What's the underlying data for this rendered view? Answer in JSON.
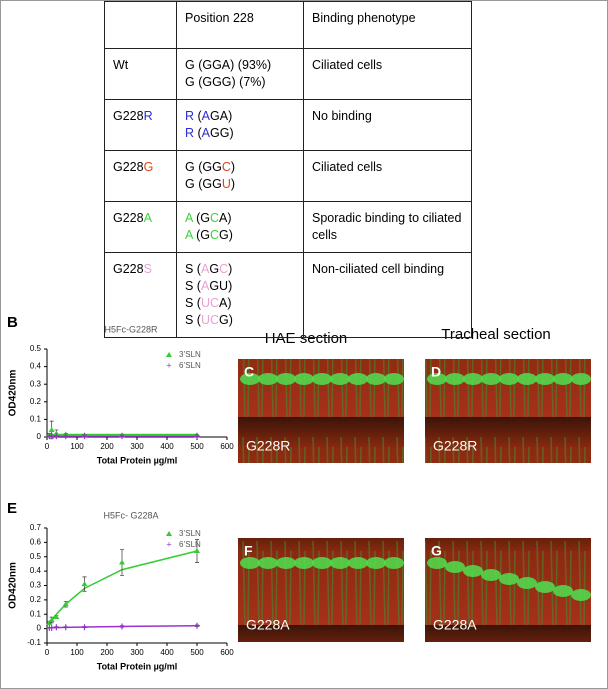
{
  "table": {
    "header": [
      "Position 228",
      "Binding phenotype"
    ],
    "rows": [
      [
        [
          [
            "Wt"
          ]
        ],
        [
          [
            "G (GGA) (93%)"
          ],
          [
            "G (GGG) (7%)"
          ]
        ],
        [
          [
            "Ciliated cells"
          ]
        ]
      ],
      [
        [
          [
            "G228",
            {
              "text": "R",
              "color": "#2b2bd6"
            }
          ]
        ],
        [
          [
            {
              "text": "R",
              "color": "#2b2bd6"
            },
            " (",
            {
              "text": "A",
              "color": "#2b2bd6"
            },
            "GA)"
          ],
          [
            {
              "text": "R",
              "color": "#2b2bd6"
            },
            " (",
            {
              "text": "A",
              "color": "#2b2bd6"
            },
            "GG)"
          ]
        ],
        [
          [
            "No binding"
          ]
        ]
      ],
      [
        [
          [
            "G228",
            {
              "text": "G",
              "color": "#e0441c"
            }
          ]
        ],
        [
          [
            "G (GG",
            {
              "text": "C",
              "color": "#e0441c"
            },
            ")"
          ],
          [
            "G (GG",
            {
              "text": "U",
              "color": "#e0441c"
            },
            ")"
          ]
        ],
        [
          [
            "Ciliated cells"
          ]
        ]
      ],
      [
        [
          [
            "G228",
            {
              "text": "A",
              "color": "#3fcf3f"
            }
          ]
        ],
        [
          [
            {
              "text": "A",
              "color": "#3fcf3f"
            },
            " (G",
            {
              "text": "C",
              "color": "#3fcf3f"
            },
            "A)"
          ],
          [
            {
              "text": "A",
              "color": "#3fcf3f"
            },
            " (G",
            {
              "text": "C",
              "color": "#3fcf3f"
            },
            "G)"
          ]
        ],
        [
          [
            "Sporadic binding to ciliated cells"
          ]
        ]
      ],
      [
        [
          [
            "G228",
            {
              "text": "S",
              "color": "#e8a2d4"
            }
          ]
        ],
        [
          [
            "S (",
            {
              "text": "A",
              "color": "#e8a2d4"
            },
            "G",
            {
              "text": "C",
              "color": "#e8a2d4"
            },
            ")"
          ],
          [
            "S (",
            {
              "text": "A",
              "color": "#e8a2d4"
            },
            "GU)"
          ],
          [
            "S (",
            {
              "text": "UC",
              "color": "#e8a2d4"
            },
            "A)"
          ],
          [
            "S (",
            {
              "text": "UC",
              "color": "#e8a2d4"
            },
            "G)"
          ]
        ],
        [
          [
            "Non-ciliated cell binding"
          ]
        ]
      ]
    ]
  },
  "chart_data": [
    {
      "type": "scatter",
      "panel": "B",
      "title": "H5Fc-G228R",
      "ylabel": "OD420nm",
      "xlabel": "Total Protein µg/ml",
      "xlim": [
        0,
        600
      ],
      "xticks": [
        0,
        100,
        200,
        300,
        400,
        500,
        600
      ],
      "ylim": [
        0,
        0.5
      ],
      "yticks": [
        0,
        0.1,
        0.2,
        0.3,
        0.4,
        0.5
      ],
      "x": [
        7.8,
        15.6,
        31.25,
        62.5,
        125,
        250,
        500
      ],
      "series": [
        {
          "name": "3’SLN",
          "color": "#33cc33",
          "marker": "triangle",
          "values": [
            0.01,
            0.04,
            0.02,
            0.015,
            0.01,
            0.01,
            0.01
          ],
          "errors": [
            0.01,
            0.05,
            0.02,
            0.006,
            0.004,
            0.003,
            0.003
          ],
          "curve": [
            0.014,
            0.014,
            0.014,
            0.014,
            0.014,
            0.014,
            0.014
          ]
        },
        {
          "name": "6’SLN",
          "color": "#9933cc",
          "marker": "plus",
          "values": [
            0.005,
            0.005,
            0.005,
            0.005,
            0.005,
            0.005,
            0.005
          ],
          "errors": [
            0.002,
            0.002,
            0.002,
            0.002,
            0.002,
            0.002,
            0.002
          ],
          "curve": [
            0.005,
            0.005,
            0.005,
            0.005,
            0.005,
            0.005,
            0.005
          ]
        }
      ]
    },
    {
      "type": "scatter",
      "panel": "E",
      "title": "H5Fc- G228A",
      "ylabel": "OD420nm",
      "xlabel": "Total Protein µg/ml",
      "xlim": [
        0,
        600
      ],
      "xticks": [
        0,
        100,
        200,
        300,
        400,
        500,
        600
      ],
      "ylim": [
        -0.1,
        0.7
      ],
      "yticks": [
        -0.1,
        0,
        0.1,
        0.2,
        0.3,
        0.4,
        0.5,
        0.6,
        0.7
      ],
      "x": [
        7.8,
        15.6,
        31.25,
        62.5,
        125,
        250,
        500
      ],
      "series": [
        {
          "name": "3’SLN",
          "color": "#33cc33",
          "marker": "triangle",
          "values": [
            0.04,
            0.06,
            0.08,
            0.17,
            0.31,
            0.46,
            0.54
          ],
          "errors": [
            0.01,
            0.02,
            0.01,
            0.02,
            0.05,
            0.09,
            0.08
          ],
          "curve": [
            0.03,
            0.055,
            0.1,
            0.17,
            0.28,
            0.41,
            0.54
          ]
        },
        {
          "name": "6’SLN",
          "color": "#9933cc",
          "marker": "plus",
          "values": [
            0.005,
            0.005,
            0.01,
            0.01,
            0.01,
            0.015,
            0.02
          ],
          "errors": [
            0.002,
            0.002,
            0.003,
            0.003,
            0.003,
            0.005,
            0.005
          ],
          "curve": [
            0.005,
            0.006,
            0.007,
            0.009,
            0.011,
            0.015,
            0.02
          ]
        }
      ]
    }
  ],
  "section_headers": [
    "HAE section",
    "Tracheal section"
  ],
  "images": [
    {
      "panel": "C",
      "label": "G228R"
    },
    {
      "panel": "D",
      "label": "G228R"
    },
    {
      "panel": "F",
      "label": "G228A"
    },
    {
      "panel": "G",
      "label": "G228A"
    }
  ]
}
